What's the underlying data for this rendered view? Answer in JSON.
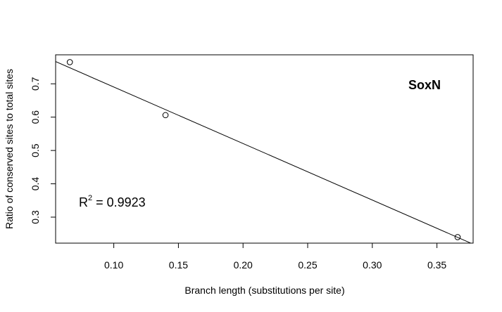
{
  "chart_data": {
    "type": "scatter",
    "title": "",
    "xlabel": "Branch length (substitutions per site)",
    "ylabel": "Ratio of conserved sites to total sites",
    "xlim": [
      0.055,
      0.378
    ],
    "ylim": [
      0.222,
      0.787
    ],
    "x_ticks": [
      0.1,
      0.15,
      0.2,
      0.25,
      0.3,
      0.35
    ],
    "x_tick_labels": [
      "0.10",
      "0.15",
      "0.20",
      "0.25",
      "0.30",
      "0.35"
    ],
    "y_ticks": [
      0.3,
      0.4,
      0.5,
      0.6,
      0.7
    ],
    "y_tick_labels": [
      "0.3",
      "0.4",
      "0.5",
      "0.6",
      "0.7"
    ],
    "grid": false,
    "points": [
      {
        "x": 0.066,
        "y": 0.765
      },
      {
        "x": 0.14,
        "y": 0.606
      },
      {
        "x": 0.366,
        "y": 0.24
      }
    ],
    "regression_line": {
      "intercept": 0.86,
      "slope": -1.696
    },
    "annotations": {
      "gene_label": "SoxN",
      "r2_prefix": "R",
      "r2_superscript": "2",
      "r2_value": " = 0.9923"
    }
  },
  "colors": {
    "background": "#ffffff",
    "axis": "#000000",
    "points": "#000000",
    "line": "#000000"
  }
}
